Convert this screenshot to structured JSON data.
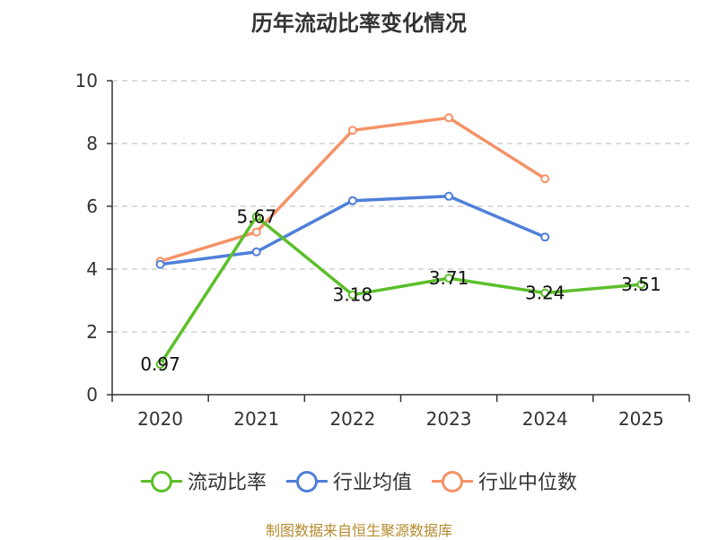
{
  "chart_data": {
    "type": "line",
    "title": "历年流动比率变化情况",
    "categories": [
      "2020",
      "2021",
      "2022",
      "2023",
      "2024",
      "2025"
    ],
    "yticks": [
      "0",
      "2",
      "4",
      "6",
      "8",
      "10"
    ],
    "ylim": [
      0,
      10
    ],
    "grid": true,
    "legend_position": "bottom",
    "series": [
      {
        "name": "流动比率",
        "color": "#5cbf2a",
        "values": [
          0.97,
          5.67,
          3.18,
          3.71,
          3.24,
          3.51
        ],
        "labels": [
          "0.97",
          "5.67",
          "3.18",
          "3.71",
          "3.24",
          "3.51"
        ]
      },
      {
        "name": "行业均值",
        "color": "#4e7fd9",
        "values": [
          4.15,
          4.55,
          6.18,
          6.32,
          5.02,
          null
        ]
      },
      {
        "name": "行业中位数",
        "color": "#f59266",
        "values": [
          4.25,
          5.18,
          8.42,
          8.82,
          6.88,
          null
        ]
      }
    ]
  },
  "source_text": "制图数据来自恒生聚源数据库"
}
